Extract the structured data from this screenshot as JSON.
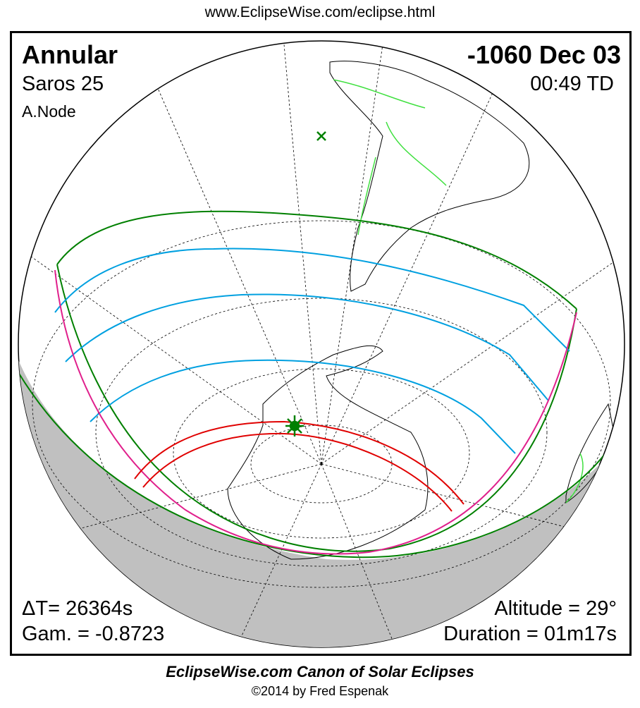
{
  "header_url": "www.EclipseWise.com/eclipse.html",
  "eclipse": {
    "type": "Annular",
    "date": "-1060 Dec 03",
    "saros": "Saros  25",
    "time": "00:49 TD",
    "node": "A.Node",
    "delta_t": "ΔT=  26364s",
    "gamma": "Gam. = -0.8723",
    "altitude": "Altitude = 29°",
    "duration": "Duration = 01m17s"
  },
  "footer": {
    "title": "EclipseWise.com Canon of Solar Eclipses",
    "copyright": "©2014 by Fred Espenak"
  },
  "colors": {
    "penumbra_limits": "#008000",
    "penumbra_contours": "#00a0e0",
    "rise_set": "#e0208c",
    "central_path": "#e00000",
    "land": "#40e040",
    "night": "#c0c0c0"
  },
  "markers": {
    "greatest_eclipse": "star-marker",
    "subsolar": "x-marker"
  }
}
